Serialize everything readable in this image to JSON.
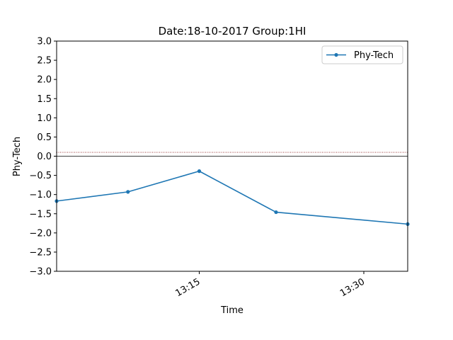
{
  "chart_data": {
    "type": "line",
    "title": "Date:18-10-2017 Group:1HI",
    "xlabel": "Time",
    "ylabel": "Phy-Tech",
    "x_axis_type": "time",
    "xlim": [
      "13:02",
      "13:34"
    ],
    "ylim": [
      -3.0,
      3.0
    ],
    "yticks": [
      "3.0",
      "2.5",
      "2.0",
      "1.5",
      "1.0",
      "0.5",
      "0.0",
      "−0.5",
      "−1.0",
      "−1.5",
      "−2.0",
      "−2.5",
      "−3.0"
    ],
    "xticks": [
      "13:15",
      "13:30"
    ],
    "grid": false,
    "legend_position": "top-right",
    "reference_lines": [
      {
        "y": 0.1,
        "color": "#8b1a1a",
        "style": "dotted"
      },
      {
        "y": 0.0,
        "color": "#000000",
        "style": "solid"
      }
    ],
    "series": [
      {
        "name": "Phy-Tech",
        "color": "#1f77b4",
        "marker": "circle",
        "x": [
          "13:02",
          "13:08.5",
          "13:15",
          "13:22",
          "13:34"
        ],
        "y": [
          -1.17,
          -0.93,
          -0.39,
          -1.46,
          -1.77
        ]
      }
    ]
  }
}
